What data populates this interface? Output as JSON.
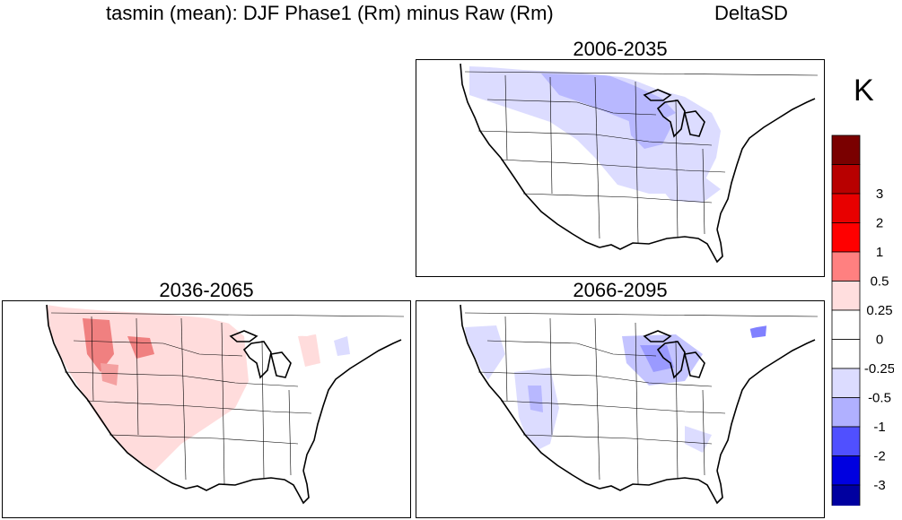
{
  "header": {
    "title": "tasmin (mean): DJF Phase1 (Rm) minus Raw (Rm)",
    "method": "DeltaSD"
  },
  "panels": [
    {
      "label": "2006-2035",
      "pattern": "cool-north"
    },
    {
      "label": "2036-2065",
      "pattern": "warm-west"
    },
    {
      "label": "2066-2095",
      "pattern": "cool-scattered"
    }
  ],
  "colorbar": {
    "unit": "K",
    "colors": [
      "#7a0000",
      "#b80000",
      "#e80000",
      "#ff0000",
      "#ff8080",
      "#ffdede",
      "#ffffff",
      "#ffffff",
      "#dcdcff",
      "#b0b0ff",
      "#5050ff",
      "#0000e0",
      "#0000a0",
      "#00007a"
    ],
    "labels": [
      "3",
      "2",
      "1",
      "0.5",
      "0.25",
      "0",
      "-0.25",
      "-0.5",
      "-1",
      "-2",
      "-3"
    ]
  }
}
